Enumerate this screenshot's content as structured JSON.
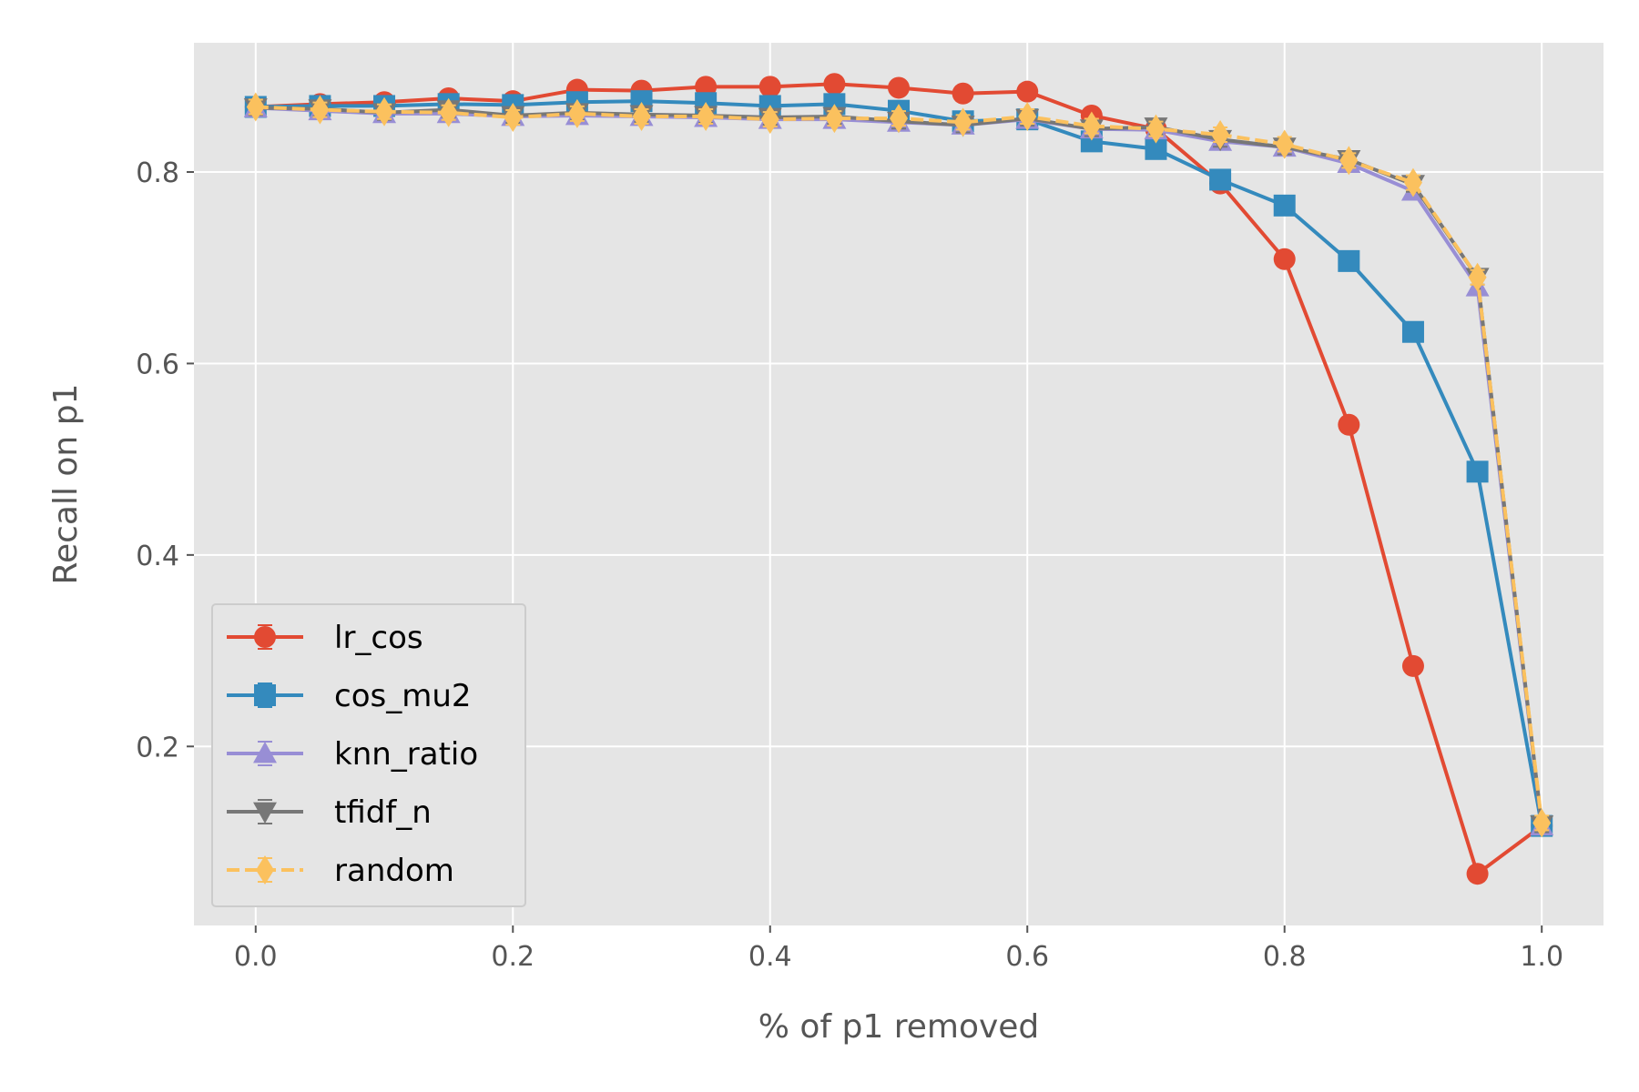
{
  "chart_data": {
    "type": "line",
    "title": "",
    "xlabel": "% of p1 removed",
    "ylabel": "Recall on p1",
    "xlim": [
      -0.048,
      1.048
    ],
    "ylim": [
      0.013,
      0.935
    ],
    "xticks": [
      0.0,
      0.2,
      0.4,
      0.6,
      0.8,
      1.0
    ],
    "xtick_labels": [
      "0.0",
      "0.2",
      "0.4",
      "0.6",
      "0.8",
      "1.0"
    ],
    "yticks": [
      0.2,
      0.4,
      0.6,
      0.8
    ],
    "ytick_labels": [
      "0.2",
      "0.4",
      "0.6",
      "0.8"
    ],
    "grid": true,
    "legend_position": "lower-left",
    "x": [
      0.0,
      0.05,
      0.1,
      0.15,
      0.2,
      0.25,
      0.3,
      0.35,
      0.4,
      0.45,
      0.5,
      0.55,
      0.6,
      0.65,
      0.7,
      0.75,
      0.8,
      0.85,
      0.9,
      0.95,
      1.0
    ],
    "series": [
      {
        "name": "lr_cos",
        "color": "#E24A33",
        "marker": "circle",
        "linestyle": "solid",
        "values": [
          0.868,
          0.871,
          0.873,
          0.877,
          0.874,
          0.886,
          0.885,
          0.889,
          0.889,
          0.892,
          0.888,
          0.882,
          0.884,
          0.859,
          0.845,
          0.788,
          0.709,
          0.536,
          0.284,
          0.067,
          0.117
        ]
      },
      {
        "name": "cos_mu2",
        "color": "#348ABD",
        "marker": "square",
        "linestyle": "solid",
        "values": [
          0.868,
          0.869,
          0.869,
          0.871,
          0.87,
          0.873,
          0.874,
          0.872,
          0.869,
          0.871,
          0.864,
          0.853,
          0.855,
          0.832,
          0.824,
          0.792,
          0.765,
          0.707,
          0.633,
          0.487,
          0.117
        ]
      },
      {
        "name": "knn_ratio",
        "color": "#988ED5",
        "marker": "triangle-up",
        "linestyle": "solid",
        "values": [
          0.867,
          0.864,
          0.861,
          0.861,
          0.858,
          0.859,
          0.858,
          0.857,
          0.855,
          0.855,
          0.852,
          0.849,
          0.855,
          0.845,
          0.844,
          0.832,
          0.826,
          0.809,
          0.78,
          0.68,
          0.117
        ]
      },
      {
        "name": "tfidf_n",
        "color": "#777777",
        "marker": "triangle-down",
        "linestyle": "solid",
        "values": [
          0.867,
          0.866,
          0.862,
          0.865,
          0.859,
          0.862,
          0.86,
          0.859,
          0.857,
          0.858,
          0.853,
          0.849,
          0.856,
          0.845,
          0.847,
          0.834,
          0.826,
          0.813,
          0.787,
          0.69,
          0.118
        ]
      },
      {
        "name": "random",
        "color": "#FBC15E",
        "marker": "diamond",
        "linestyle": "dashed",
        "values": [
          0.868,
          0.865,
          0.863,
          0.862,
          0.857,
          0.861,
          0.858,
          0.858,
          0.855,
          0.856,
          0.856,
          0.852,
          0.858,
          0.848,
          0.845,
          0.839,
          0.829,
          0.812,
          0.789,
          0.69,
          0.12
        ]
      }
    ]
  }
}
